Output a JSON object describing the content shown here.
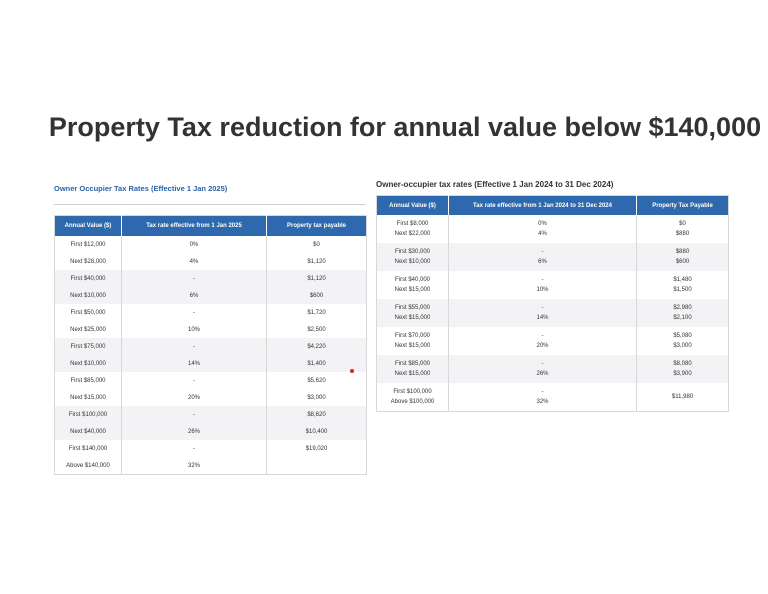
{
  "title": "Property Tax reduction for annual value below $140,000",
  "left_table": {
    "caption": "Owner Occupier Tax Rates (Effective 1 Jan 2025)",
    "headers": [
      "Annual Value ($)",
      "Tax rate effective from 1 Jan 2025",
      "Property tax payable"
    ],
    "rows": [
      [
        "First $12,000",
        "0%",
        "$0"
      ],
      [
        "Next $28,000",
        "4%",
        "$1,120"
      ],
      [
        "First $40,000",
        "-",
        "$1,120"
      ],
      [
        "Next $10,000",
        "6%",
        "$600"
      ],
      [
        "First $50,000",
        "-",
        "$1,720"
      ],
      [
        "Next $25,000",
        "10%",
        "$2,500"
      ],
      [
        "First $75,000",
        "-",
        "$4,220"
      ],
      [
        "Next $10,000",
        "14%",
        "$1,400"
      ],
      [
        "First $85,000",
        "-",
        "$5,620"
      ],
      [
        "Next $15,000",
        "20%",
        "$3,000"
      ],
      [
        "First $100,000",
        "-",
        "$8,620"
      ],
      [
        "Next $40,000",
        "26%",
        "$10,400"
      ],
      [
        "First $140,000",
        "-",
        "$19,020"
      ],
      [
        "Above $140,000",
        "32%",
        ""
      ]
    ]
  },
  "right_table": {
    "caption": "Owner-occupier tax rates (Effective 1 Jan 2024 to 31 Dec 2024)",
    "headers": [
      "Annual Value ($)",
      "Tax rate effective from 1 Jan 2024 to 31 Dec 2024",
      "Property Tax Payable"
    ],
    "rows": [
      [
        [
          "First $8,000",
          "Next $22,000"
        ],
        [
          "0%",
          "4%"
        ],
        [
          "$0",
          "$880"
        ]
      ],
      [
        [
          "First $30,000",
          "Next $10,000"
        ],
        [
          "-",
          "6%"
        ],
        [
          "$880",
          "$600"
        ]
      ],
      [
        [
          "First $40,000",
          "Next $15,000"
        ],
        [
          "-",
          "10%"
        ],
        [
          "$1,480",
          "$1,500"
        ]
      ],
      [
        [
          "First $55,000",
          "Next $15,000"
        ],
        [
          "-",
          "14%"
        ],
        [
          "$2,980",
          "$2,100"
        ]
      ],
      [
        [
          "First $70,000",
          "Next $15,000"
        ],
        [
          "-",
          "20%"
        ],
        [
          "$5,080",
          "$3,000"
        ]
      ],
      [
        [
          "First $85,000",
          "Next $15,000"
        ],
        [
          "-",
          "26%"
        ],
        [
          "$8,080",
          "$3,900"
        ]
      ],
      [
        [
          "First $100,000",
          "Above $100,000"
        ],
        [
          "-",
          "32%"
        ],
        [
          "$11,980",
          ""
        ]
      ]
    ]
  },
  "colors": {
    "header_blue": "#2e68ad",
    "caption_blue": "#2a63a6",
    "band_gray": "#f3f3f6",
    "cursor_red": "#e02020"
  }
}
